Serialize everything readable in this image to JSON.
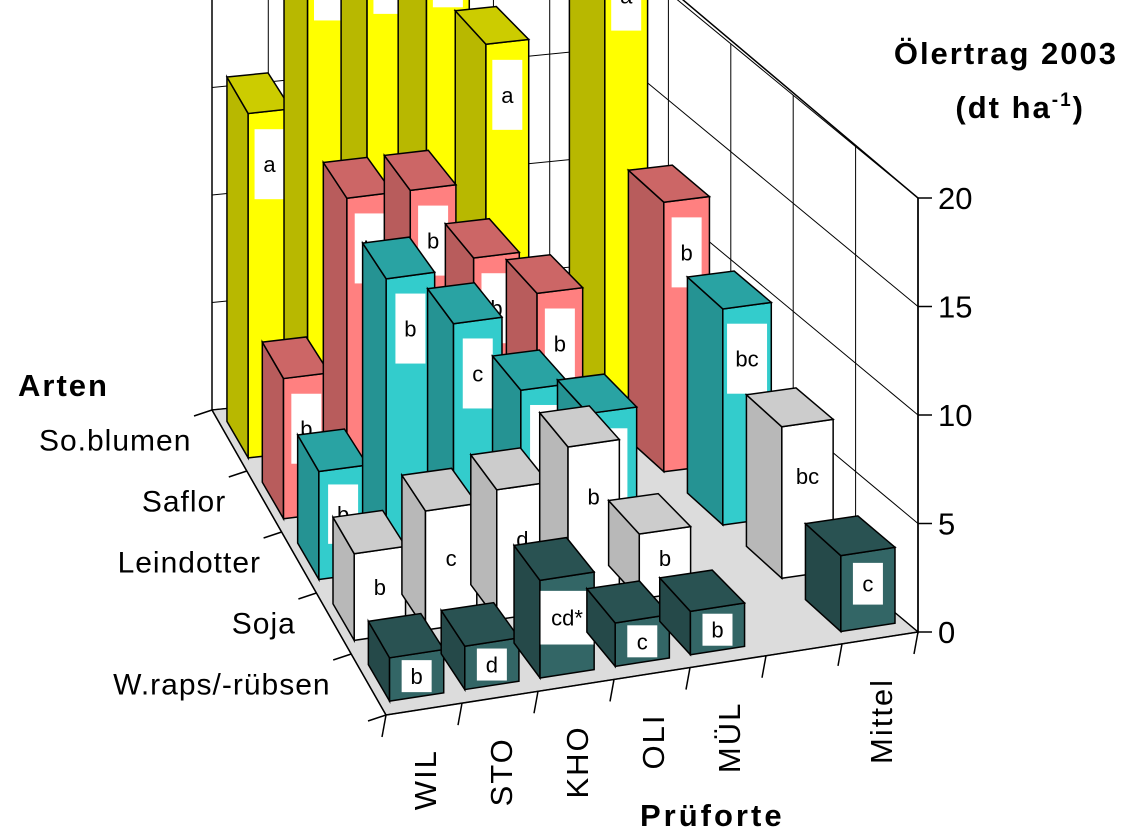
{
  "chart_data": {
    "type": "bar",
    "title": "Ölertrag 2003",
    "unit_label": "(dt ha-1)",
    "unit_parts": [
      "(dt ha",
      "-1",
      ")"
    ],
    "z_axis_label": "Arten",
    "x_axis_label": "Prüforte",
    "sites": [
      "WIL",
      "STO",
      "KHO",
      "OLI",
      "MÜL",
      "Mittel"
    ],
    "zlim": [
      0,
      20
    ],
    "zticks": [
      0,
      5,
      10,
      15,
      20
    ],
    "series": [
      {
        "name": "So.blumen",
        "color": "#ffff00",
        "values": [
          16,
          24,
          24,
          24,
          18,
          null,
          22
        ],
        "labels": [
          "a",
          "a",
          "a",
          "a",
          "a",
          "",
          "a"
        ]
      },
      {
        "name": "Saflor",
        "color": "#ff8080",
        "values": [
          6.5,
          14.5,
          14.5,
          11,
          9,
          null,
          12.5
        ],
        "labels": [
          "b",
          "b",
          "b",
          "b",
          "b",
          "",
          "b"
        ]
      },
      {
        "name": "Leindotter",
        "color": "#33cccc",
        "values": [
          5,
          13.5,
          11,
          7.5,
          6,
          null,
          10
        ],
        "labels": [
          "b",
          "b",
          "c",
          "c",
          "b",
          "",
          "bc"
        ]
      },
      {
        "name": "Soja",
        "color": "#ffffff",
        "values": [
          4,
          5.5,
          6,
          7.5,
          3,
          null,
          7
        ],
        "labels": [
          "b",
          "c",
          "d",
          "b",
          "b",
          "",
          "bc"
        ]
      },
      {
        "name": "W.raps/-rübsen",
        "color": "#336666",
        "values": [
          2,
          2,
          4.5,
          2,
          2,
          null,
          3.5
        ],
        "labels": [
          "b",
          "d",
          "cd*",
          "c",
          "b",
          "",
          "c"
        ]
      }
    ],
    "grid": true,
    "legend": "none"
  }
}
